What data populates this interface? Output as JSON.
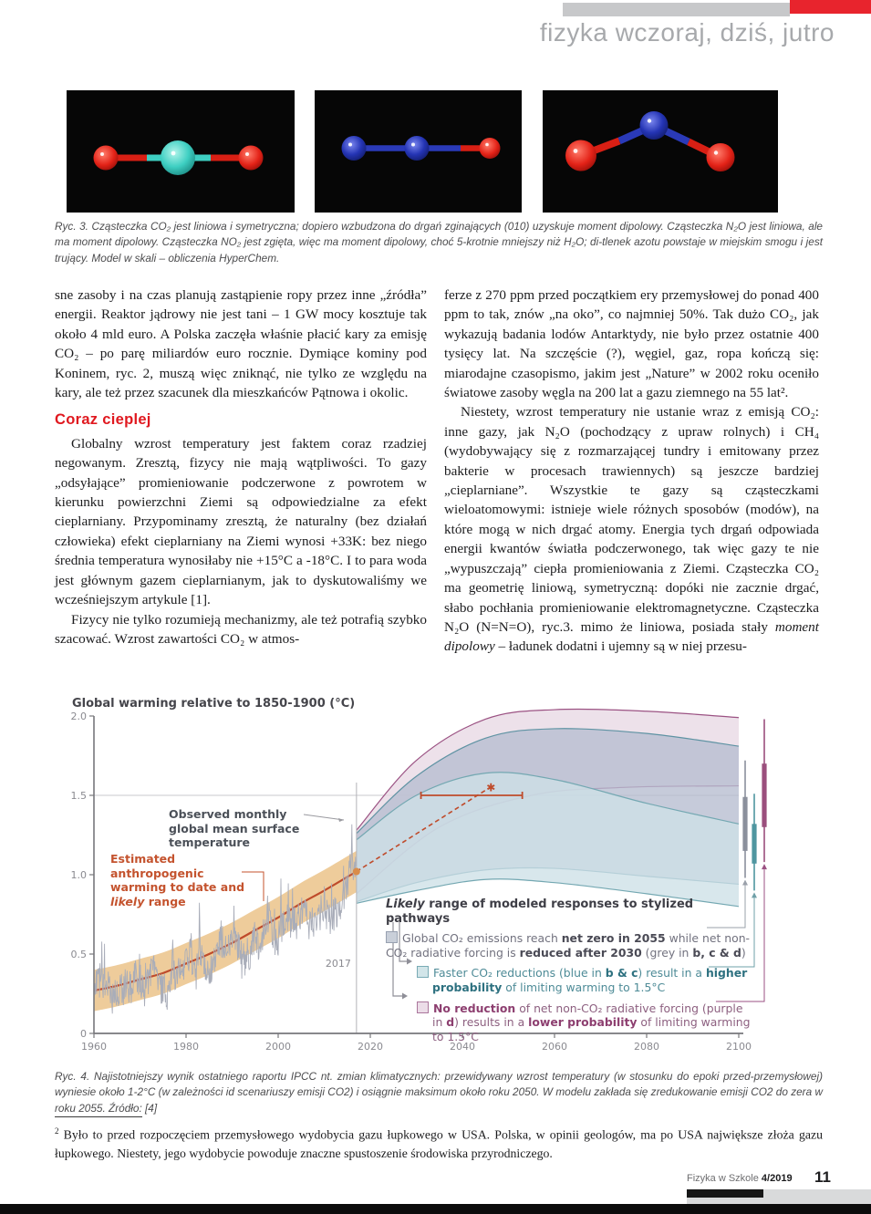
{
  "header": {
    "title": "fizyka wczoraj, dziś, jutro"
  },
  "figure3": {
    "molecules": [
      {
        "name": "CO2 linear molecule model"
      },
      {
        "name": "N2O linear molecule model"
      },
      {
        "name": "NO2 bent molecule model"
      }
    ],
    "caption": "Ryc. 3. Cząsteczka CO₂ jest liniowa i symetryczna; dopiero wzbudzona do drgań zginających (010) uzyskuje moment dipolowy. Cząsteczka N₂O jest liniowa, ale ma moment dipolowy. Cząsteczka NO₂ jest zgięta, więc ma moment dipolowy, choć 5-krotnie mniejszy niż H₂O; di-tlenek azotu powstaje w miejskim smogu i jest trujący. Model w skali – obliczenia HyperChem."
  },
  "article": {
    "left": {
      "p1": "sne zasoby i na czas planują zastąpienie ropy przez inne „źródła” energii. Reaktor jądrowy nie jest tani – 1 GW mocy kosztuje tak około 4 mld euro. A Polska zaczęła właśnie płacić kary za emisję CO₂ – po parę miliardów euro rocznie. Dymiące kominy pod Koninem, ryc. 2, muszą więc zniknąć, nie tylko ze względu na kary, ale też przez szacunek dla mieszkańców Pątnowa i okolic.",
      "heading": "Coraz cieplej",
      "p2": "Globalny wzrost temperatury jest faktem coraz rzadziej negowanym. Zresztą, fizycy nie mają wątpliwości. To gazy „odsyłające” promieniowanie podczerwone z powrotem w kierunku powierzchni Ziemi są odpowiedzialne za efekt cieplarniany. Przypominamy zresztą, że naturalny (bez działań człowieka) efekt cieplarniany na Ziemi wynosi +33K: bez niego średnia temperatura wynosiłaby nie +15°C a -18°C. I to para woda jest głównym gazem cieplarnianym, jak to dyskutowaliśmy we wcześniejszym artykule [1].",
      "p3": "Fizycy nie tylko rozumieją mechanizmy, ale też potrafią szybko szacować. Wzrost zawartości CO₂ w atmos-"
    },
    "right": {
      "p1": "ferze z 270 ppm przed początkiem ery przemysłowej do ponad 400 ppm to tak, znów „na oko”, co najmniej 50%. Tak dużo CO₂, jak wykazują badania lodów Antarktydy, nie było przez ostatnie 400 tysięcy lat. Na szczęście (?), węgiel, gaz, ropa kończą się: miarodajne czasopismo, jakim jest „Nature” w 2002 roku oceniło światowe zasoby węgla na 200 lat a gazu ziemnego na 55 lat².",
      "p2_rich": [
        {
          "t": "Niestety, wzrost temperatury nie ustanie wraz z emisją CO₂: inne gazy, jak N₂O (pochodzący z upraw rolnych) i CH₄ (wydobywający się z rozmarzającej tundry i emitowany przez bakterie w procesach trawiennych) są jeszcze bardziej „cieplarniane”. Wszystkie te gazy są cząsteczkami wieloatomowymi: istnieje wiele różnych sposobów (modów), na które mogą w nich drgać atomy. Energia tych drgań odpowiada energii kwantów światła podczerwonego, tak więc gazy te nie „wypuszczają” ciepła promieniowania z Ziemi. Cząsteczka CO₂ ma geometrię liniową, symetryczną: dopóki nie zacznie drgać, słabo pochłania promieniowanie elektromagnetyczne. Cząsteczka N₂O (N=N=O), ryc.3. mimo że liniowa, posiada stały "
        },
        {
          "t": "moment dipolowy",
          "i": true
        },
        {
          "t": " – ładunek dodatni i ujemny są w niej przesu-"
        }
      ]
    }
  },
  "chart_data": {
    "type": "area",
    "title": "Global warming relative to 1850-1900 (°C)",
    "xlabel": "",
    "ylabel": "",
    "xlim": [
      1960,
      2100
    ],
    "ylim": [
      0,
      2.0
    ],
    "x_ticks": [
      1960,
      1980,
      2000,
      2020,
      2040,
      2060,
      2080,
      2100
    ],
    "y_ticks": [
      0,
      0.5,
      1.0,
      1.5,
      2.0
    ],
    "y_tick_labels": [
      "0",
      "0.5",
      "1.0",
      "1.5",
      "2.0"
    ],
    "grid": "single line at 1.5",
    "gridline_y": 1.5,
    "vline_x": 2017,
    "observed": {
      "name": "Observed monthly global mean surface temperature",
      "color": "#a9adb9",
      "x_start": 1960,
      "x_end": 2017,
      "yearly_values": [
        0.3,
        0.33,
        0.3,
        0.31,
        0.22,
        0.25,
        0.28,
        0.3,
        0.29,
        0.35,
        0.33,
        0.28,
        0.32,
        0.4,
        0.27,
        0.3,
        0.25,
        0.42,
        0.36,
        0.42,
        0.47,
        0.5,
        0.42,
        0.55,
        0.42,
        0.4,
        0.45,
        0.55,
        0.58,
        0.5,
        0.62,
        0.6,
        0.45,
        0.48,
        0.52,
        0.62,
        0.55,
        0.65,
        0.75,
        0.58,
        0.6,
        0.68,
        0.72,
        0.72,
        0.68,
        0.78,
        0.73,
        0.75,
        0.65,
        0.75,
        0.82,
        0.7,
        0.75,
        0.78,
        0.85,
        0.95,
        1.1,
        1.0
      ]
    },
    "anthropogenic": {
      "name": "Estimated anthropogenic warming to date and likely range",
      "line_color": "#bf4b2b",
      "band_color": "#ecc690",
      "x": [
        1960,
        1965,
        1970,
        1975,
        1980,
        1985,
        1990,
        1995,
        2000,
        2005,
        2010,
        2017
      ],
      "central": [
        0.27,
        0.3,
        0.34,
        0.38,
        0.44,
        0.5,
        0.57,
        0.65,
        0.73,
        0.82,
        0.9,
        1.02
      ],
      "halfwidth": 0.13
    },
    "projection": {
      "color": "#bf4b2b",
      "x": [
        2017,
        2046
      ],
      "y": [
        1.02,
        1.55
      ]
    },
    "errorbar_1p5": {
      "y": 1.5,
      "x_from": 2031,
      "x_to": 2053,
      "color": "#bf4b2b"
    },
    "bands": [
      {
        "name": "no reduction of net non-CO₂ forcing (purple in d)",
        "fill": "#e8d9e4",
        "stroke": "#9b5283",
        "upper": [
          [
            2017,
            1.28
          ],
          [
            2030,
            1.72
          ],
          [
            2045,
            1.98
          ],
          [
            2060,
            2.04
          ],
          [
            2080,
            2.03
          ],
          [
            2100,
            1.99
          ]
        ],
        "lower": [
          [
            2017,
            0.88
          ],
          [
            2035,
            1.3
          ],
          [
            2055,
            1.5
          ],
          [
            2075,
            1.55
          ],
          [
            2100,
            1.56
          ]
        ]
      },
      {
        "name": "net zero 2055, non-CO₂ reduced after 2030 (grey)",
        "fill": "#b6bccf",
        "stroke": "#5f93a3",
        "upper": [
          [
            2017,
            1.26
          ],
          [
            2030,
            1.62
          ],
          [
            2045,
            1.86
          ],
          [
            2060,
            1.92
          ],
          [
            2080,
            1.89
          ],
          [
            2100,
            1.81
          ]
        ],
        "lower": [
          [
            2017,
            0.83
          ],
          [
            2030,
            0.95
          ],
          [
            2045,
            1.03
          ],
          [
            2060,
            1.04
          ],
          [
            2080,
            0.99
          ],
          [
            2100,
            0.94
          ]
        ]
      },
      {
        "name": "faster CO₂ reductions (blue in b & c)",
        "fill": "#cde0e7",
        "stroke": "#74a8b2",
        "upper": [
          [
            2017,
            1.22
          ],
          [
            2030,
            1.5
          ],
          [
            2045,
            1.64
          ],
          [
            2060,
            1.6
          ],
          [
            2080,
            1.45
          ],
          [
            2100,
            1.32
          ]
        ],
        "lower": [
          [
            2017,
            0.82
          ],
          [
            2030,
            0.9
          ],
          [
            2045,
            0.97
          ],
          [
            2060,
            0.95
          ],
          [
            2080,
            0.88
          ],
          [
            2100,
            0.8
          ]
        ]
      }
    ],
    "end_bars": [
      {
        "color": "#8b909c",
        "whisker": [
          0.98,
          1.72
        ],
        "box": [
          1.15,
          1.49
        ]
      },
      {
        "color": "#4f96a0",
        "whisker": [
          0.9,
          1.51
        ],
        "box": [
          1.07,
          1.32
        ]
      },
      {
        "color": "#9b4f7d",
        "whisker": [
          1.08,
          1.98
        ],
        "box": [
          1.3,
          1.7
        ]
      }
    ],
    "annotations": {
      "observed_label": "Observed monthly global mean surface temperature",
      "anthropogenic_label_rich": [
        {
          "t": "Estimated anthropogenic warming to date and "
        },
        {
          "t": "likely",
          "i": true
        },
        {
          "t": " range"
        }
      ],
      "vline_label": "2017"
    },
    "legend": {
      "title_rich": [
        {
          "t": "Likely",
          "i": true,
          "b": true
        },
        {
          "t": " range of modeled responses to stylized pathways",
          "b": true
        }
      ],
      "items": [
        {
          "square_fill": "#c9cfd9",
          "square_border": "#98a1b1",
          "color": "#72727f",
          "rich": [
            {
              "t": "Global CO₂ emissions reach "
            },
            {
              "t": "net zero in 2055",
              "b": true,
              "c": "#4a4a55"
            },
            {
              "t": " while net non-CO₂ radiative forcing is "
            },
            {
              "t": "reduced after 2030",
              "b": true,
              "c": "#4a4a55"
            },
            {
              "t": " (grey in "
            },
            {
              "t": "b, c & d",
              "b": true,
              "c": "#4a4a55"
            },
            {
              "t": ")"
            }
          ]
        },
        {
          "square_fill": "#d2e5e9",
          "square_border": "#79abb5",
          "color": "#4e8b97",
          "rich": [
            {
              "t": "Faster CO₂ reductions (blue in "
            },
            {
              "t": "b & c",
              "b": true,
              "c": "#2e7180"
            },
            {
              "t": ") result in a "
            },
            {
              "t": "higher probability",
              "b": true,
              "c": "#2e7180"
            },
            {
              "t": " of limiting warming to 1.5°C"
            }
          ]
        },
        {
          "square_fill": "#ecdde8",
          "square_border": "#ab769c",
          "color": "#8d6080",
          "rich": [
            {
              "t": "No reduction",
              "b": true,
              "c": "#8d3f70"
            },
            {
              "t": " of net non-CO₂ radiative forcing (purple in "
            },
            {
              "t": "d",
              "b": true,
              "c": "#8d3f70"
            },
            {
              "t": ") results in a "
            },
            {
              "t": "lower probability",
              "b": true,
              "c": "#8d3f70"
            },
            {
              "t": " of limiting warming to 1.5°C"
            }
          ]
        }
      ]
    }
  },
  "figure4_caption": "Ryc. 4. Najistotniejszy wynik ostatniego raportu IPCC nt. zmian klimatycznych: przewidywany wzrost temperatury (w stosunku do epoki przed-przemysłowej) wyniesie około 1-2°C (w zależności id scenariuszy emisji CO2) i osiągnie maksimum około roku 2050. W modelu zakłada się zredukowanie emisji CO2 do zera w roku 2055. Źródło: [4]",
  "footnote": {
    "marker": "2",
    "text": "Było to przed rozpoczęciem przemysłowego wydobycia gazu łupkowego w USA. Polska, w opinii geologów, ma po USA największe złoża gazu łupkowego. Niestety, jego wydobycie powoduje znaczne spustoszenie środowiska przyrodniczego."
  },
  "footer": {
    "journal": "Fizyka w Szkole",
    "issue": "4/2019",
    "page": "11"
  }
}
